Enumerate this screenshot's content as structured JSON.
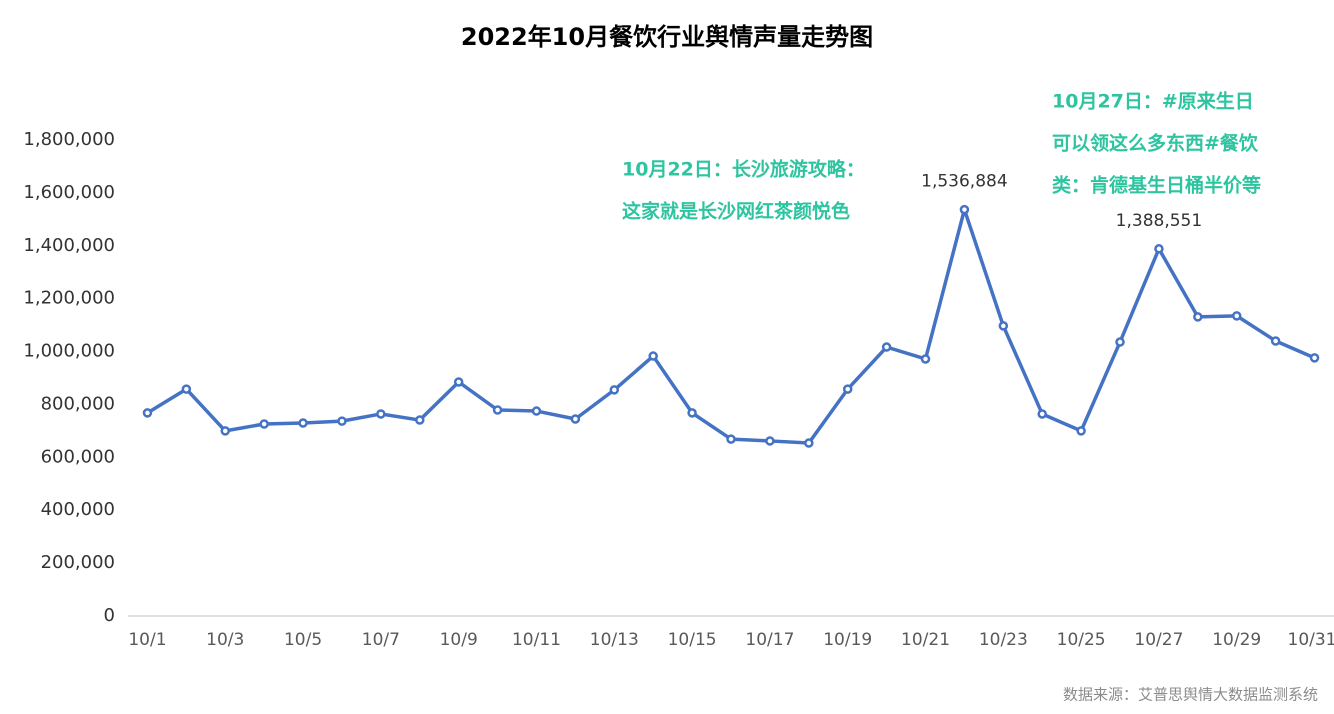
{
  "chart_data": {
    "type": "line",
    "title": "2022年10月餐饮行业舆情声量走势图",
    "categories": [
      "10/1",
      null,
      "10/3",
      null,
      "10/5",
      null,
      "10/7",
      null,
      "10/9",
      null,
      "10/11",
      null,
      "10/13",
      null,
      "10/15",
      null,
      "10/17",
      null,
      "10/19",
      null,
      "10/21",
      null,
      "10/23",
      null,
      "10/25",
      null,
      "10/27",
      null,
      "10/29",
      null,
      "10/31"
    ],
    "values": [
      768000,
      858000,
      700000,
      726000,
      730000,
      737000,
      764000,
      741000,
      885000,
      779000,
      775000,
      745000,
      855000,
      983000,
      768000,
      669000,
      662000,
      654000,
      858000,
      1017000,
      972000,
      1536884,
      1097000,
      764000,
      700000,
      1036000,
      1388551,
      1131000,
      1135000,
      1040000,
      976000
    ],
    "value_labels": [
      null,
      null,
      null,
      null,
      null,
      null,
      null,
      null,
      null,
      null,
      null,
      null,
      null,
      null,
      null,
      null,
      null,
      null,
      null,
      null,
      null,
      "1,536,884",
      null,
      null,
      null,
      null,
      "1,388,551",
      null,
      null,
      null,
      null
    ],
    "color": "#4472c4",
    "ylim": [
      0,
      1800000
    ],
    "yticks": [
      0,
      {
        "value": 200000,
        "label": "200,000"
      },
      {
        "value": 400000,
        "label": "400,000"
      },
      {
        "value": 600000,
        "label": "600,000"
      },
      {
        "value": 800000,
        "label": "800,000"
      },
      {
        "value": 1000000,
        "label": "1,000,000"
      },
      {
        "value": 1200000,
        "label": "1,200,000"
      },
      {
        "value": 1400000,
        "label": "1,400,000"
      },
      {
        "value": 1600000,
        "label": "1,600,000"
      },
      {
        "value": 1800000,
        "label": "1,800,000"
      }
    ],
    "grid": false,
    "annotations": [
      {
        "lines": [
          "10月22日：长沙旅游攻略：",
          "这家就是长沙网红茶颜悦色"
        ],
        "color": "#2ec4a0"
      },
      {
        "lines": [
          "10月27日：#原来生日",
          "可以领这么多东西#餐饮",
          "类：肯德基生日桶半价等"
        ],
        "color": "#2ec4a0"
      }
    ],
    "source": "数据来源：艾普思舆情大数据监测系统"
  }
}
